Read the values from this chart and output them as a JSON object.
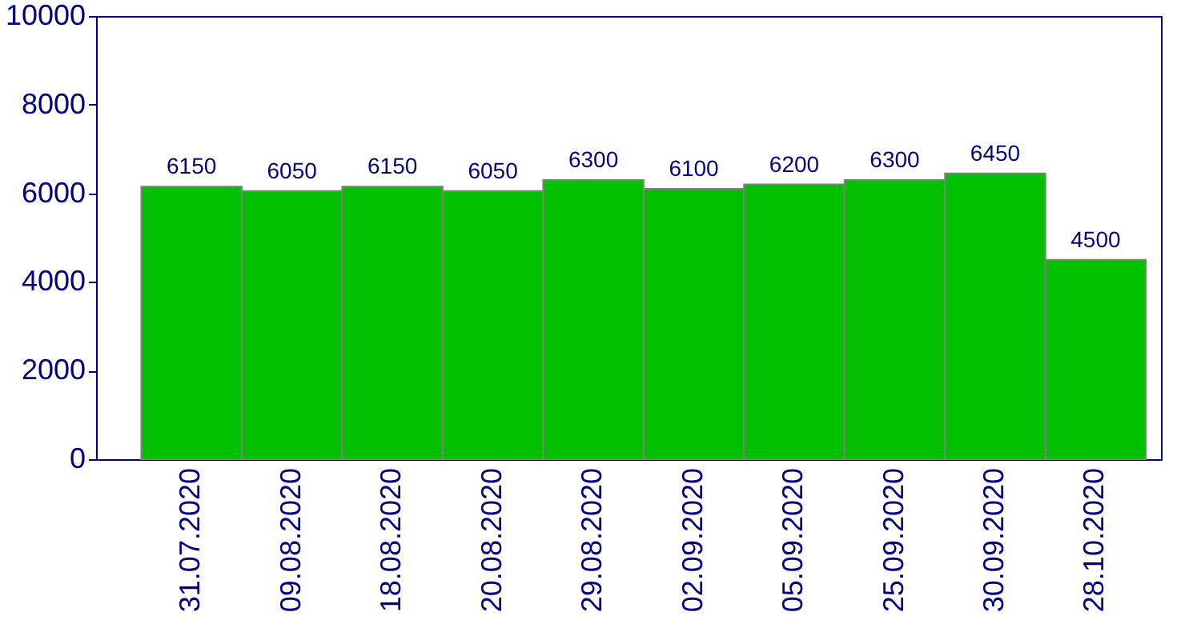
{
  "chart_data": {
    "type": "bar",
    "categories": [
      "31.07.2020",
      "09.08.2020",
      "18.08.2020",
      "20.08.2020",
      "29.08.2020",
      "02.09.2020",
      "05.09.2020",
      "25.09.2020",
      "30.09.2020",
      "28.10.2020"
    ],
    "values": [
      6150,
      6050,
      6150,
      6050,
      6300,
      6100,
      6200,
      6300,
      6450,
      4500
    ],
    "color": "#00c000",
    "ylim": [
      0,
      10000
    ],
    "yticks": [
      0,
      2000,
      4000,
      6000,
      8000,
      10000
    ],
    "data_labels": true,
    "grid": false
  }
}
